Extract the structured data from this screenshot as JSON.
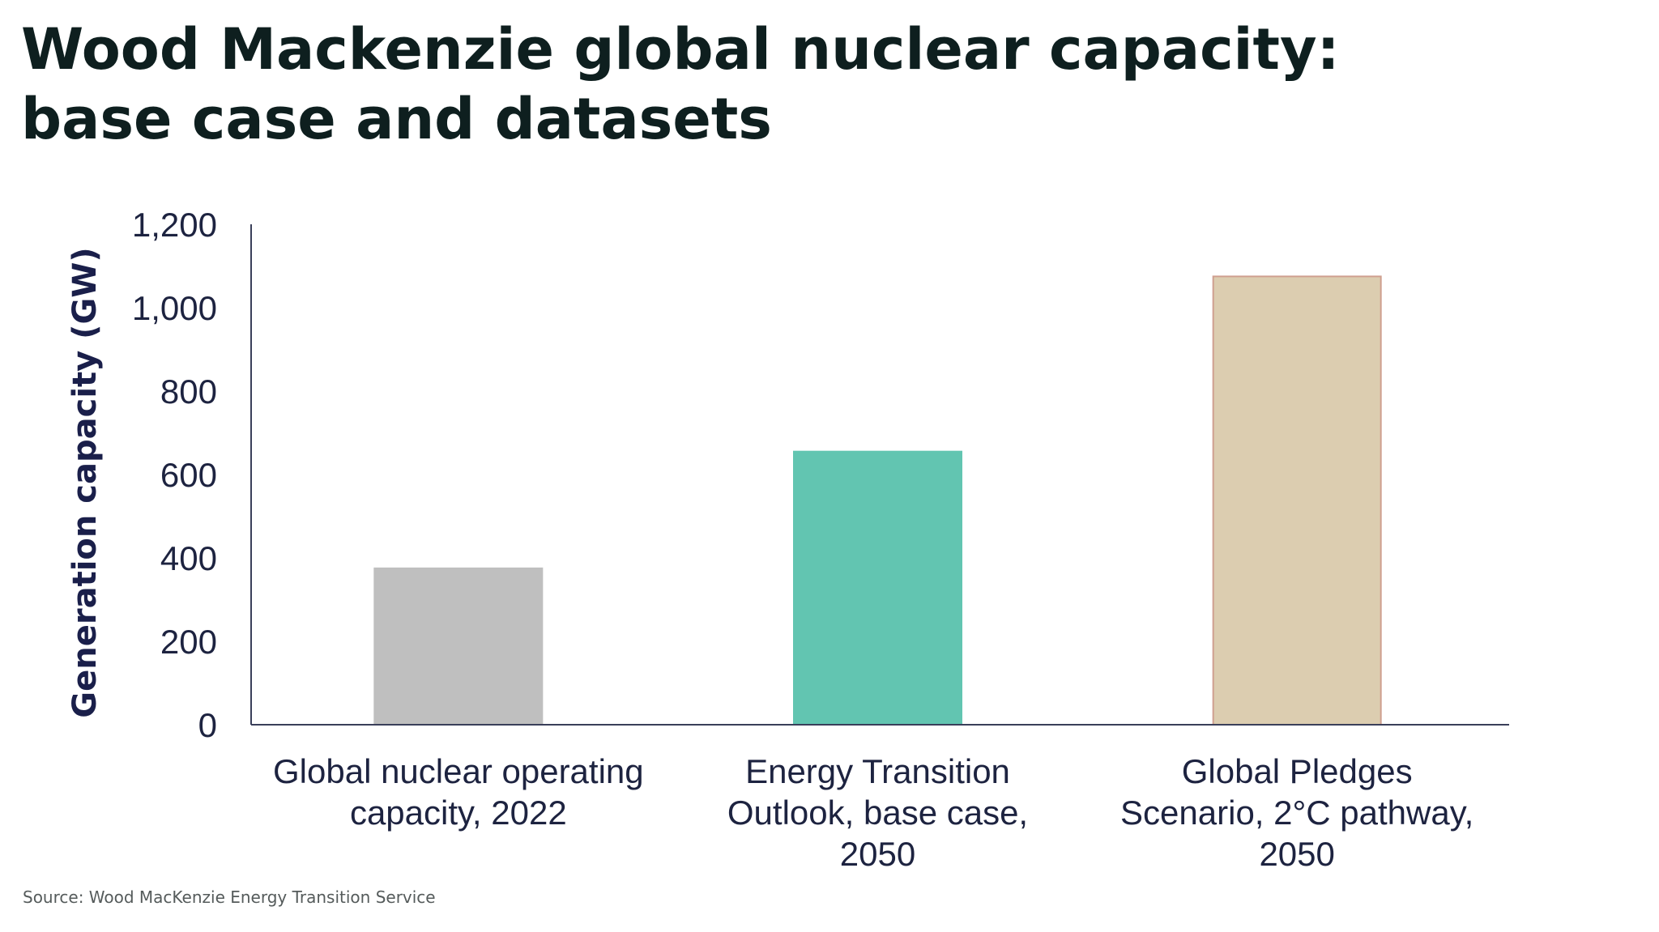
{
  "title_lines": [
    "Wood Mackenzie global nuclear capacity:",
    "base case and datasets"
  ],
  "source": "Source: Wood MacKenzie Energy Transition Service",
  "chart_data": {
    "type": "bar",
    "title": "",
    "xlabel": "",
    "ylabel": "Generation capacity (GW)",
    "ylim": [
      0,
      1200
    ],
    "yticks": [
      0,
      200,
      400,
      600,
      800,
      1000,
      1200
    ],
    "ytick_labels": [
      "0",
      "200",
      "400",
      "600",
      "800",
      "1,000",
      "1,200"
    ],
    "grid": false,
    "legend": "none",
    "categories": [
      [
        "Global nuclear operating",
        "capacity, 2022"
      ],
      [
        "Energy Transition",
        "Outlook, base case,",
        "2050"
      ],
      [
        "Global Pledges",
        "Scenario, 2°C pathway,",
        "2050"
      ]
    ],
    "values": [
      375,
      655,
      1075
    ],
    "colors": [
      "#bfbfbf",
      "#62c5b1",
      "#dccdb0"
    ],
    "edge_colors": [
      "#bfbfbf",
      "#62c5b1",
      "#cf9f8f"
    ],
    "axis_color": "#3a3f5a"
  }
}
